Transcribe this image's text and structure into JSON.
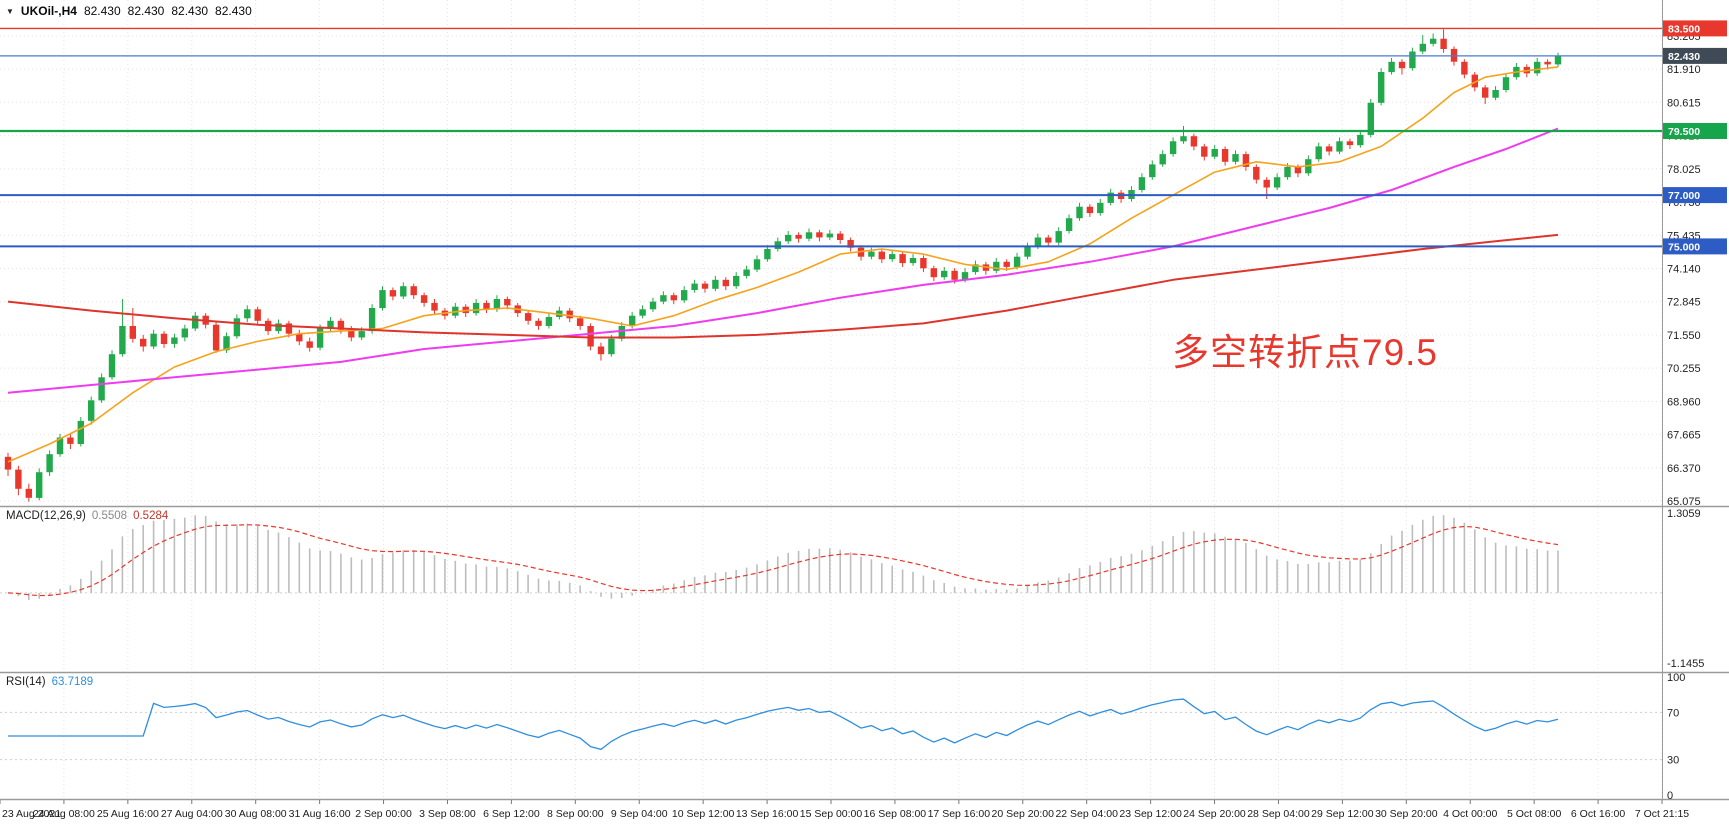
{
  "header": {
    "symbol": "UKOil-,H4",
    "open": "82.430",
    "high": "82.430",
    "low": "82.430",
    "close": "82.430"
  },
  "annotation": {
    "text": "多空转折点79.5",
    "color": "#e8382e"
  },
  "colors": {
    "up": "#22a94c",
    "down": "#e8382e",
    "grid": "#e4e4e4",
    "grid2": "#cfcfcf",
    "axis_text": "#1f1f1f",
    "separator": "#9a9a9a",
    "macd_hist": "#bdbdbd",
    "macd_signal": "#e8382e",
    "rsi": "#2f8fdd",
    "badge_text": "#ffffff"
  },
  "price_axis": {
    "labels": [
      83.205,
      81.91,
      80.615,
      79.32,
      78.025,
      76.73,
      75.435,
      74.14,
      72.845,
      71.55,
      70.255,
      68.96,
      67.665,
      66.37,
      65.075
    ]
  },
  "hlines": [
    {
      "price": 83.5,
      "color": "#e8382e",
      "width": 1.4,
      "label": "83.500",
      "badge": "#e8382e"
    },
    {
      "price": 82.43,
      "color": "#4a7bd0",
      "width": 1.2,
      "label": "82.430",
      "badge": "#3f4a56"
    },
    {
      "price": 79.5,
      "color": "#16a54a",
      "width": 2.2,
      "label": "79.500",
      "badge": "#16a54a"
    },
    {
      "price": 77.0,
      "color": "#2d5cc5",
      "width": 2.0,
      "label": "77.000",
      "badge": "#2d5cc5"
    },
    {
      "price": 75.0,
      "color": "#2d5cc5",
      "width": 2.0,
      "label": "75.000",
      "badge": "#2d5cc5"
    }
  ],
  "time_axis": {
    "labels": [
      "23 Aug 2021",
      "24 Aug 08:00",
      "25 Aug 16:00",
      "27 Aug 04:00",
      "30 Aug 08:00",
      "31 Aug 16:00",
      "2 Sep 00:00",
      "3 Sep 08:00",
      "6 Sep 12:00",
      "8 Sep 00:00",
      "9 Sep 04:00",
      "10 Sep 12:00",
      "13 Sep 16:00",
      "15 Sep 00:00",
      "16 Sep 08:00",
      "17 Sep 16:00",
      "20 Sep 20:00",
      "22 Sep 04:00",
      "23 Sep 12:00",
      "24 Sep 20:00",
      "28 Sep 04:00",
      "29 Sep 12:00",
      "30 Sep 20:00",
      "4 Oct 00:00",
      "5 Oct 08:00",
      "6 Oct 16:00",
      "7 Oct 21:15"
    ]
  },
  "indicators": {
    "macd": {
      "title": "MACD(12,26,9)",
      "value_main": "0.5508",
      "value_signal": "0.5284",
      "scale_max": "1.3059",
      "scale_min": "-1.1455",
      "fast": 12,
      "slow": 26,
      "signal": 9
    },
    "rsi": {
      "title": "RSI(14)",
      "value": "63.7189",
      "period": 14,
      "levels": [
        100,
        70,
        30,
        0
      ]
    }
  },
  "chart_data": {
    "type": "candlestick",
    "symbol": "UKOil-",
    "timeframe": "H4",
    "title": "UKOil-,H4",
    "y_range": [
      64.92,
      84.53
    ],
    "grid": true,
    "candles": [
      [
        66.8,
        66.95,
        66.05,
        66.3
      ],
      [
        66.3,
        66.45,
        65.3,
        65.55
      ],
      [
        65.55,
        65.75,
        65.05,
        65.2
      ],
      [
        65.2,
        66.35,
        65.1,
        66.2
      ],
      [
        66.2,
        67.05,
        66.05,
        66.9
      ],
      [
        66.9,
        67.7,
        66.8,
        67.55
      ],
      [
        67.55,
        67.7,
        67.1,
        67.3
      ],
      [
        67.3,
        68.35,
        67.2,
        68.2
      ],
      [
        68.2,
        69.15,
        68.05,
        69.0
      ],
      [
        69.0,
        70.05,
        68.9,
        69.9
      ],
      [
        69.9,
        70.95,
        69.8,
        70.8
      ],
      [
        70.8,
        72.95,
        70.7,
        71.9
      ],
      [
        71.9,
        72.6,
        71.25,
        71.4
      ],
      [
        71.4,
        71.55,
        70.9,
        71.1
      ],
      [
        71.1,
        71.75,
        71.0,
        71.6
      ],
      [
        71.6,
        71.7,
        71.05,
        71.2
      ],
      [
        71.2,
        71.6,
        71.05,
        71.45
      ],
      [
        71.45,
        71.95,
        71.3,
        71.8
      ],
      [
        71.8,
        72.45,
        71.7,
        72.3
      ],
      [
        72.3,
        72.4,
        71.8,
        71.95
      ],
      [
        71.95,
        72.05,
        70.85,
        70.95
      ],
      [
        70.95,
        71.65,
        70.85,
        71.5
      ],
      [
        71.5,
        72.35,
        71.4,
        72.2
      ],
      [
        72.2,
        72.7,
        72.05,
        72.55
      ],
      [
        72.55,
        72.65,
        71.95,
        72.1
      ],
      [
        72.1,
        72.2,
        71.55,
        71.7
      ],
      [
        71.7,
        72.15,
        71.6,
        72.0
      ],
      [
        72.0,
        72.1,
        71.45,
        71.6
      ],
      [
        71.6,
        71.75,
        71.15,
        71.3
      ],
      [
        71.3,
        71.45,
        70.9,
        71.05
      ],
      [
        71.05,
        71.95,
        70.95,
        71.8
      ],
      [
        71.8,
        72.25,
        71.7,
        72.1
      ],
      [
        72.1,
        72.2,
        71.6,
        71.75
      ],
      [
        71.75,
        71.9,
        71.3,
        71.45
      ],
      [
        71.45,
        71.85,
        71.35,
        71.7
      ],
      [
        71.7,
        72.75,
        71.6,
        72.6
      ],
      [
        72.6,
        73.45,
        72.5,
        73.3
      ],
      [
        73.3,
        73.4,
        72.9,
        73.05
      ],
      [
        73.05,
        73.6,
        72.95,
        73.45
      ],
      [
        73.45,
        73.55,
        72.95,
        73.1
      ],
      [
        73.1,
        73.2,
        72.65,
        72.8
      ],
      [
        72.8,
        72.95,
        72.35,
        72.5
      ],
      [
        72.5,
        72.6,
        72.15,
        72.3
      ],
      [
        72.3,
        72.8,
        72.2,
        72.65
      ],
      [
        72.65,
        72.75,
        72.25,
        72.4
      ],
      [
        72.4,
        72.95,
        72.3,
        72.8
      ],
      [
        72.8,
        72.9,
        72.4,
        72.55
      ],
      [
        72.55,
        73.1,
        72.45,
        72.95
      ],
      [
        72.95,
        73.05,
        72.55,
        72.7
      ],
      [
        72.7,
        72.8,
        72.25,
        72.4
      ],
      [
        72.4,
        72.5,
        71.95,
        72.1
      ],
      [
        72.1,
        72.2,
        71.75,
        71.9
      ],
      [
        71.9,
        72.4,
        71.8,
        72.25
      ],
      [
        72.25,
        72.65,
        72.15,
        72.5
      ],
      [
        72.5,
        72.6,
        72.05,
        72.2
      ],
      [
        72.2,
        72.3,
        71.75,
        71.9
      ],
      [
        71.9,
        72.0,
        70.95,
        71.1
      ],
      [
        71.1,
        71.25,
        70.55,
        70.8
      ],
      [
        70.8,
        71.55,
        70.7,
        71.4
      ],
      [
        71.4,
        72.05,
        71.3,
        71.9
      ],
      [
        71.9,
        72.45,
        71.8,
        72.3
      ],
      [
        72.3,
        72.7,
        72.2,
        72.55
      ],
      [
        72.55,
        73.0,
        72.45,
        72.85
      ],
      [
        72.85,
        73.25,
        72.75,
        73.1
      ],
      [
        73.1,
        73.2,
        72.75,
        72.9
      ],
      [
        72.9,
        73.45,
        72.8,
        73.3
      ],
      [
        73.3,
        73.7,
        73.2,
        73.55
      ],
      [
        73.55,
        73.65,
        73.2,
        73.35
      ],
      [
        73.35,
        73.85,
        73.25,
        73.7
      ],
      [
        73.7,
        73.8,
        73.3,
        73.45
      ],
      [
        73.45,
        74.0,
        73.35,
        73.85
      ],
      [
        73.85,
        74.25,
        73.75,
        74.1
      ],
      [
        74.1,
        74.65,
        74.0,
        74.5
      ],
      [
        74.5,
        75.05,
        74.4,
        74.9
      ],
      [
        74.9,
        75.35,
        74.8,
        75.2
      ],
      [
        75.2,
        75.6,
        75.1,
        75.45
      ],
      [
        75.45,
        75.55,
        75.15,
        75.3
      ],
      [
        75.3,
        75.7,
        75.2,
        75.55
      ],
      [
        75.55,
        75.65,
        75.2,
        75.35
      ],
      [
        75.35,
        75.65,
        75.25,
        75.5
      ],
      [
        75.5,
        75.6,
        75.1,
        75.25
      ],
      [
        75.25,
        75.35,
        74.8,
        74.95
      ],
      [
        74.95,
        75.05,
        74.45,
        74.6
      ],
      [
        74.6,
        74.95,
        74.5,
        74.8
      ],
      [
        74.8,
        74.9,
        74.35,
        74.5
      ],
      [
        74.5,
        74.85,
        74.4,
        74.7
      ],
      [
        74.7,
        74.8,
        74.2,
        74.35
      ],
      [
        74.35,
        74.7,
        74.25,
        74.55
      ],
      [
        74.55,
        74.65,
        74.0,
        74.15
      ],
      [
        74.15,
        74.25,
        73.65,
        73.8
      ],
      [
        73.8,
        74.2,
        73.7,
        74.05
      ],
      [
        74.05,
        74.15,
        73.55,
        73.7
      ],
      [
        73.7,
        74.15,
        73.6,
        74.0
      ],
      [
        74.0,
        74.45,
        73.9,
        74.3
      ],
      [
        74.3,
        74.4,
        73.9,
        74.05
      ],
      [
        74.05,
        74.55,
        73.95,
        74.4
      ],
      [
        74.4,
        74.5,
        74.05,
        74.2
      ],
      [
        74.2,
        74.75,
        74.1,
        74.6
      ],
      [
        74.6,
        75.15,
        74.5,
        75.0
      ],
      [
        75.0,
        75.5,
        74.9,
        75.35
      ],
      [
        75.35,
        75.45,
        75.0,
        75.15
      ],
      [
        75.15,
        75.75,
        75.05,
        75.6
      ],
      [
        75.6,
        76.25,
        75.5,
        76.1
      ],
      [
        76.1,
        76.7,
        76.0,
        76.55
      ],
      [
        76.55,
        76.65,
        76.15,
        76.3
      ],
      [
        76.3,
        76.85,
        76.2,
        76.7
      ],
      [
        76.7,
        77.25,
        76.6,
        77.1
      ],
      [
        77.1,
        77.2,
        76.7,
        76.85
      ],
      [
        76.85,
        77.35,
        76.75,
        77.2
      ],
      [
        77.2,
        77.85,
        77.1,
        77.7
      ],
      [
        77.7,
        78.35,
        77.6,
        78.2
      ],
      [
        78.2,
        78.75,
        78.1,
        78.6
      ],
      [
        78.6,
        79.25,
        78.5,
        79.1
      ],
      [
        79.1,
        79.7,
        79.0,
        79.3
      ],
      [
        79.3,
        79.4,
        78.75,
        78.9
      ],
      [
        78.9,
        79.0,
        78.35,
        78.5
      ],
      [
        78.5,
        78.95,
        78.4,
        78.8
      ],
      [
        78.8,
        78.9,
        78.15,
        78.3
      ],
      [
        78.3,
        78.75,
        78.2,
        78.6
      ],
      [
        78.6,
        78.7,
        77.95,
        78.1
      ],
      [
        78.1,
        78.2,
        77.45,
        77.6
      ],
      [
        77.6,
        77.7,
        76.85,
        77.3
      ],
      [
        77.3,
        77.85,
        77.2,
        77.7
      ],
      [
        77.7,
        78.25,
        77.6,
        78.1
      ],
      [
        78.1,
        78.2,
        77.7,
        77.85
      ],
      [
        77.85,
        78.55,
        77.75,
        78.4
      ],
      [
        78.4,
        79.05,
        78.3,
        78.9
      ],
      [
        78.9,
        79.0,
        78.55,
        78.7
      ],
      [
        78.7,
        79.25,
        78.6,
        79.1
      ],
      [
        79.1,
        79.2,
        78.8,
        78.95
      ],
      [
        78.95,
        79.5,
        78.85,
        79.35
      ],
      [
        79.35,
        80.75,
        79.25,
        80.6
      ],
      [
        80.6,
        81.95,
        80.5,
        81.8
      ],
      [
        81.8,
        82.35,
        81.7,
        82.2
      ],
      [
        82.2,
        82.3,
        81.7,
        81.95
      ],
      [
        81.95,
        82.75,
        81.85,
        82.6
      ],
      [
        82.6,
        83.24,
        82.5,
        82.9
      ],
      [
        82.9,
        83.3,
        82.8,
        83.1
      ],
      [
        83.1,
        83.47,
        82.55,
        82.7
      ],
      [
        82.7,
        82.8,
        82.05,
        82.2
      ],
      [
        82.2,
        82.3,
        81.55,
        81.7
      ],
      [
        81.7,
        81.8,
        81.05,
        81.2
      ],
      [
        81.2,
        81.3,
        80.55,
        80.8
      ],
      [
        80.8,
        81.25,
        80.7,
        81.1
      ],
      [
        81.1,
        81.75,
        81.0,
        81.6
      ],
      [
        81.6,
        82.15,
        81.5,
        82.0
      ],
      [
        82.0,
        82.1,
        81.6,
        81.75
      ],
      [
        81.75,
        82.35,
        81.65,
        82.2
      ],
      [
        82.2,
        82.3,
        81.9,
        82.1
      ],
      [
        82.1,
        82.55,
        82.0,
        82.43
      ]
    ],
    "moving_averages": [
      {
        "name": "fast-ma",
        "color": "#f7a21b",
        "width": 1.6,
        "points": [
          [
            0,
            66.6
          ],
          [
            4,
            67.3
          ],
          [
            8,
            68.1
          ],
          [
            12,
            69.3
          ],
          [
            16,
            70.3
          ],
          [
            20,
            70.9
          ],
          [
            24,
            71.3
          ],
          [
            28,
            71.6
          ],
          [
            32,
            71.7
          ],
          [
            36,
            71.8
          ],
          [
            40,
            72.3
          ],
          [
            44,
            72.5
          ],
          [
            48,
            72.6
          ],
          [
            52,
            72.4
          ],
          [
            56,
            72.2
          ],
          [
            60,
            71.9
          ],
          [
            64,
            72.3
          ],
          [
            68,
            72.9
          ],
          [
            72,
            73.4
          ],
          [
            76,
            74.0
          ],
          [
            80,
            74.7
          ],
          [
            84,
            74.9
          ],
          [
            88,
            74.7
          ],
          [
            92,
            74.3
          ],
          [
            96,
            74.1
          ],
          [
            100,
            74.4
          ],
          [
            104,
            75.1
          ],
          [
            108,
            76.1
          ],
          [
            112,
            77.0
          ],
          [
            116,
            77.9
          ],
          [
            120,
            78.3
          ],
          [
            124,
            78.1
          ],
          [
            128,
            78.3
          ],
          [
            132,
            78.9
          ],
          [
            136,
            80.0
          ],
          [
            139,
            81.0
          ],
          [
            142,
            81.6
          ],
          [
            145,
            81.8
          ],
          [
            149,
            82.0
          ]
        ]
      },
      {
        "name": "mid-ma",
        "color": "#ee3cee",
        "width": 2.0,
        "points": [
          [
            0,
            69.3
          ],
          [
            8,
            69.6
          ],
          [
            16,
            69.9
          ],
          [
            24,
            70.2
          ],
          [
            32,
            70.5
          ],
          [
            40,
            71.0
          ],
          [
            48,
            71.3
          ],
          [
            56,
            71.6
          ],
          [
            64,
            71.9
          ],
          [
            72,
            72.4
          ],
          [
            80,
            73.0
          ],
          [
            88,
            73.5
          ],
          [
            96,
            73.9
          ],
          [
            104,
            74.4
          ],
          [
            112,
            75.0
          ],
          [
            120,
            75.8
          ],
          [
            127,
            76.5
          ],
          [
            133,
            77.2
          ],
          [
            139,
            78.1
          ],
          [
            144,
            78.8
          ],
          [
            149,
            79.6
          ]
        ]
      },
      {
        "name": "slow-ma",
        "color": "#dd352c",
        "width": 2.0,
        "points": [
          [
            0,
            72.85
          ],
          [
            8,
            72.5
          ],
          [
            16,
            72.2
          ],
          [
            24,
            71.95
          ],
          [
            32,
            71.8
          ],
          [
            40,
            71.65
          ],
          [
            48,
            71.55
          ],
          [
            56,
            71.45
          ],
          [
            64,
            71.45
          ],
          [
            72,
            71.55
          ],
          [
            80,
            71.75
          ],
          [
            88,
            72.0
          ],
          [
            96,
            72.5
          ],
          [
            104,
            73.1
          ],
          [
            112,
            73.7
          ],
          [
            120,
            74.1
          ],
          [
            128,
            74.5
          ],
          [
            136,
            74.9
          ],
          [
            143,
            75.2
          ],
          [
            149,
            75.45
          ]
        ]
      }
    ]
  }
}
